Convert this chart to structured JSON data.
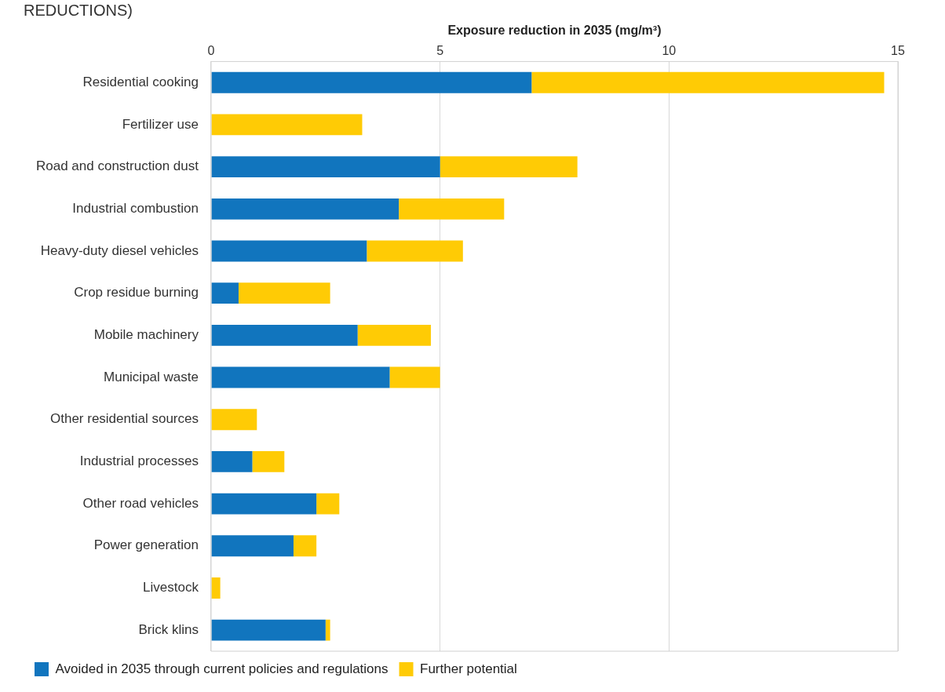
{
  "chart_data": {
    "type": "bar",
    "orientation": "horizontal",
    "stacked": true,
    "title": "REDUCTIONS)",
    "xlabel": "Exposure reduction in 2035 (mg/m³)",
    "categories": [
      "Residential cooking",
      "Fertilizer use",
      "Road and construction dust",
      "Industrial combustion",
      "Heavy-duty diesel vehicles",
      "Crop residue burning",
      "Mobile machinery",
      "Municipal waste",
      "Other residential sources",
      "Industrial processes",
      "Other road vehicles",
      "Power generation",
      "Livestock",
      "Brick klins"
    ],
    "series": [
      {
        "name": "Avoided in 2035 through current policies and regulations",
        "color": "#1175be",
        "values": [
          7.0,
          null,
          5.0,
          4.1,
          3.4,
          0.6,
          3.2,
          3.9,
          null,
          0.9,
          2.3,
          1.8,
          null,
          2.5
        ]
      },
      {
        "name": "Further potential",
        "color": "#ffcb05",
        "values": [
          7.7,
          3.3,
          3.0,
          2.3,
          2.1,
          2.0,
          1.6,
          1.1,
          1.0,
          0.7,
          0.5,
          0.5,
          0.2,
          0.1
        ]
      }
    ],
    "xlim": [
      0,
      15
    ],
    "xticks": [
      0,
      5,
      10,
      15
    ],
    "grid": "x",
    "legend": "bottom"
  }
}
